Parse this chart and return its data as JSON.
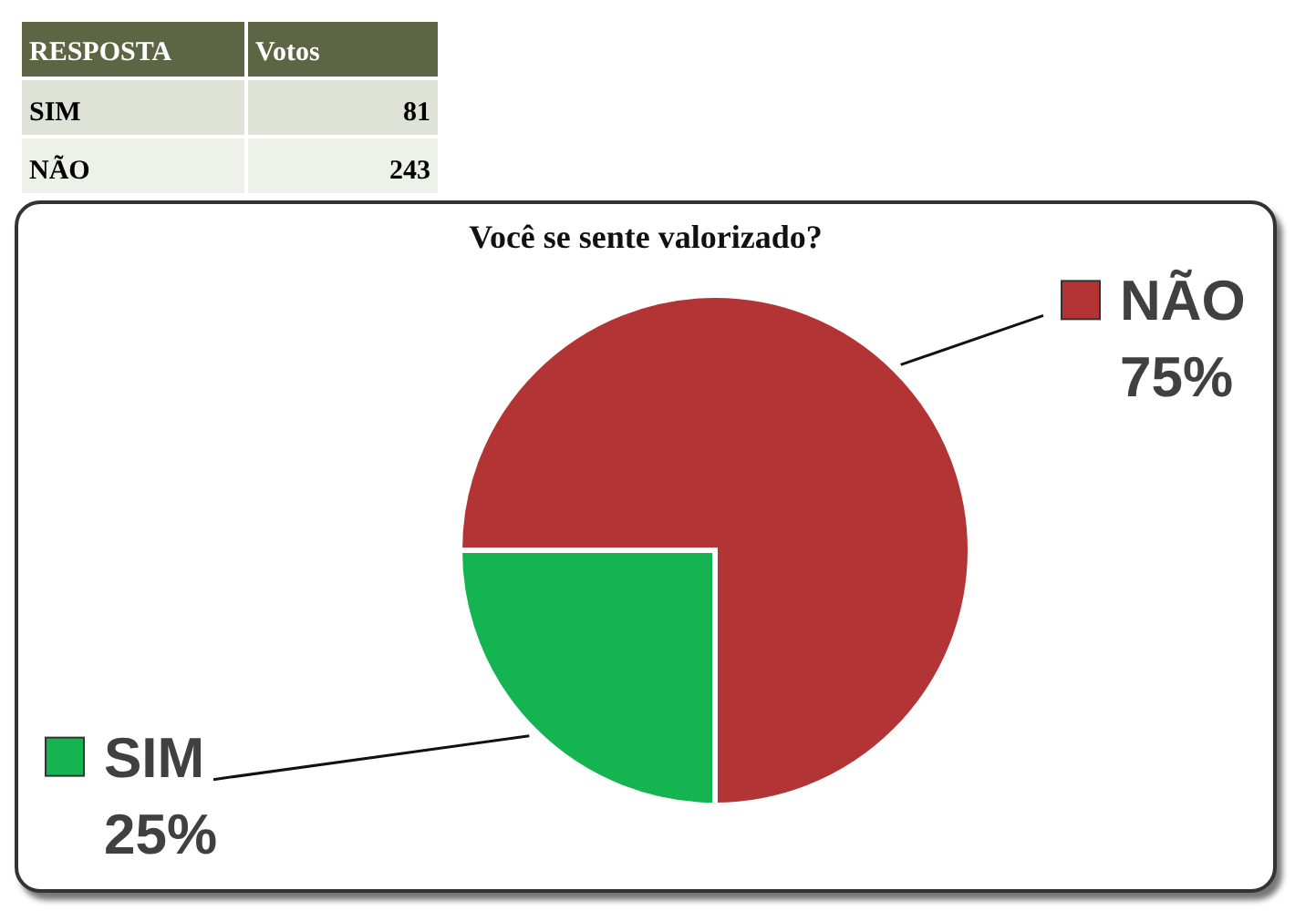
{
  "chart_data": {
    "type": "pie",
    "title": "Você se sente valorizado?",
    "categories": [
      "SIM",
      "NÃO"
    ],
    "values": [
      25,
      75
    ],
    "colors": [
      "#14b450",
      "#b23434"
    ],
    "value_labels": [
      "25%",
      "75%"
    ],
    "legend": "top left",
    "annotations": [
      "RESPOSTA",
      "Votos",
      "81",
      "243"
    ]
  }
}
